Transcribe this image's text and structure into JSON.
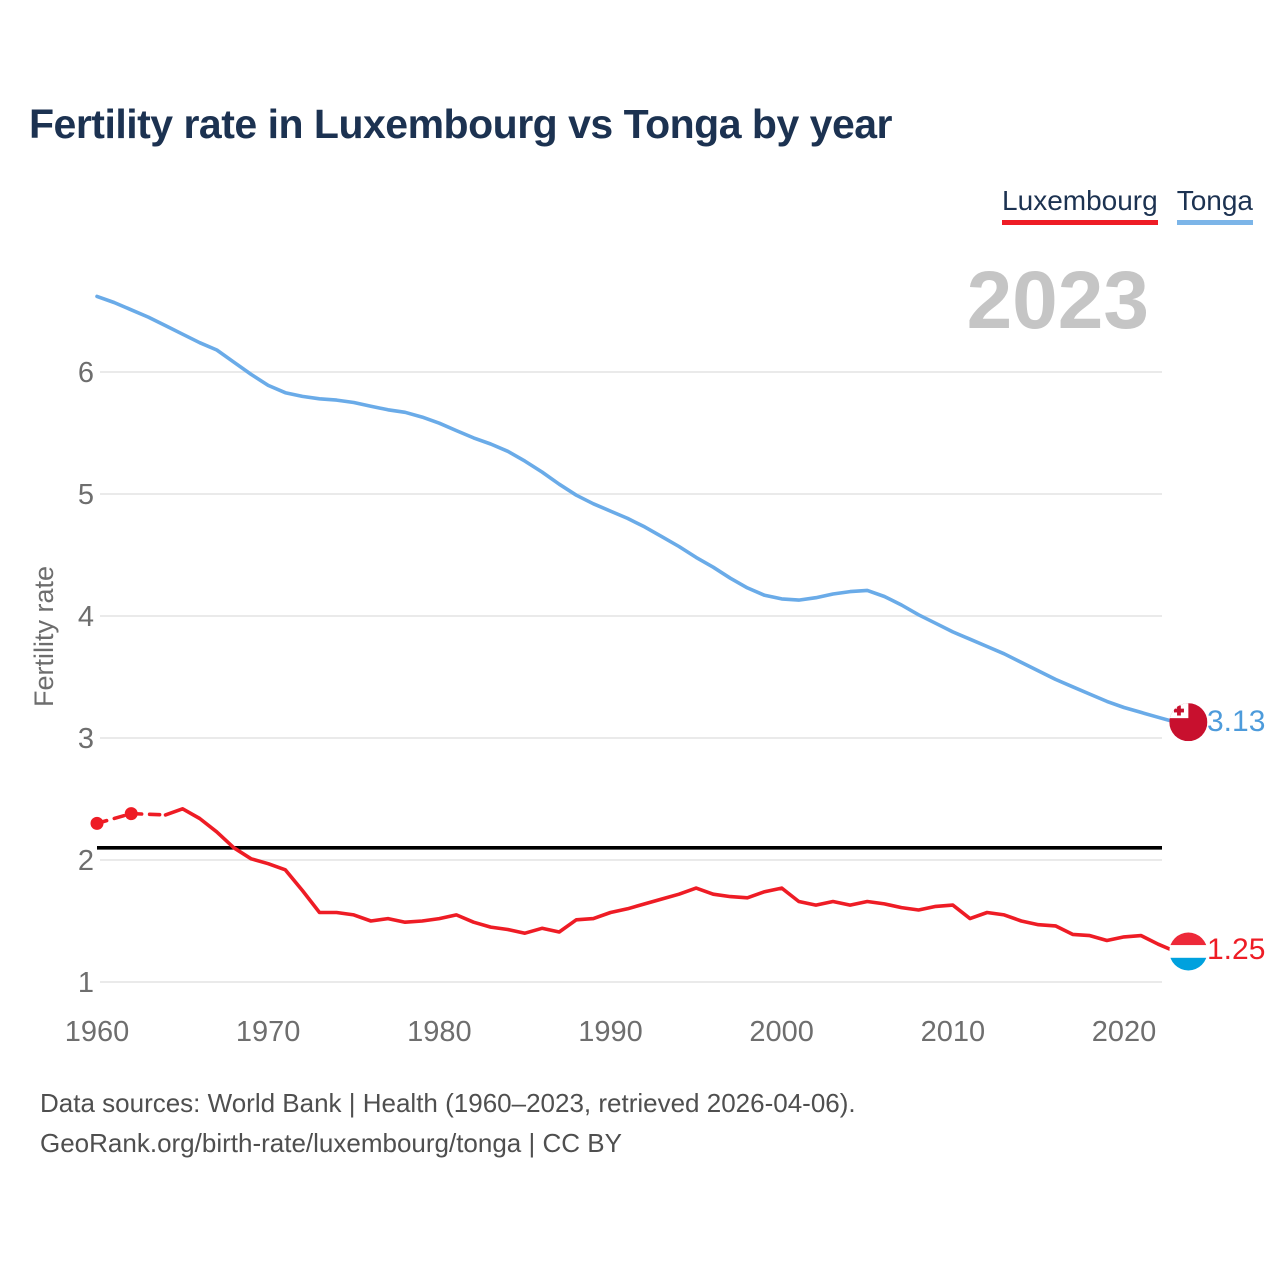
{
  "header": {
    "title": "Fertility rate in Luxembourg vs Tonga by year"
  },
  "legend": {
    "luxembourg": "Luxembourg",
    "tonga": "Tonga"
  },
  "footer": {
    "line1": "Data sources: World Bank | Health (1960–2023, retrieved 2026-04-06).",
    "line2": "GeoRank.org/birth-rate/luxembourg/tonga | CC BY"
  },
  "colors": {
    "title_navy": "#1c3251",
    "tonga_line_blue": "#6aabe8",
    "tonga_value_blue": "#4d9bdb",
    "tonga_underline_blue": "#7cb5e8",
    "luxembourg_red": "#ee1c25",
    "reference_line_black": "#000000",
    "watermark_gray": "#c5c5c5",
    "axis_text_gray": "#6e6e6e",
    "gridline_gray": "#e4e4e4",
    "tonga_flag_red": "#c8102e",
    "lux_flag_red": "#ed2939",
    "lux_flag_blue": "#00a1de"
  },
  "chart_data": {
    "type": "line",
    "title": "Fertility rate in Luxembourg vs Tonga by year",
    "xlabel": "",
    "ylabel": "Fertility rate",
    "watermark": "2023",
    "x_ticks": [
      1960,
      1970,
      1980,
      1990,
      2000,
      2010,
      2020
    ],
    "y_ticks": [
      1,
      2,
      3,
      4,
      5,
      6
    ],
    "xlim": [
      1960,
      2023
    ],
    "ylim": [
      0.8,
      6.9
    ],
    "grid": "horizontal",
    "legend_position": "top-right",
    "reference_line": {
      "value": 2.1,
      "color": "#000000"
    },
    "series": [
      {
        "name": "Tonga",
        "color": "#6aabe8",
        "end_label": "3.13",
        "flag": "tonga",
        "x": [
          1960,
          1961,
          1962,
          1963,
          1964,
          1965,
          1966,
          1967,
          1968,
          1969,
          1970,
          1971,
          1972,
          1973,
          1974,
          1975,
          1976,
          1977,
          1978,
          1979,
          1980,
          1981,
          1982,
          1983,
          1984,
          1985,
          1986,
          1987,
          1988,
          1989,
          1990,
          1991,
          1992,
          1993,
          1994,
          1995,
          1996,
          1997,
          1998,
          1999,
          2000,
          2001,
          2002,
          2003,
          2004,
          2005,
          2006,
          2007,
          2008,
          2009,
          2010,
          2011,
          2012,
          2013,
          2014,
          2015,
          2016,
          2017,
          2018,
          2019,
          2020,
          2021,
          2022,
          2023
        ],
        "values": [
          6.62,
          6.57,
          6.51,
          6.45,
          6.38,
          6.31,
          6.24,
          6.18,
          6.08,
          5.98,
          5.89,
          5.83,
          5.8,
          5.78,
          5.77,
          5.75,
          5.72,
          5.69,
          5.67,
          5.63,
          5.58,
          5.52,
          5.46,
          5.41,
          5.35,
          5.27,
          5.18,
          5.08,
          4.99,
          4.92,
          4.86,
          4.8,
          4.73,
          4.65,
          4.57,
          4.48,
          4.4,
          4.31,
          4.23,
          4.17,
          4.14,
          4.13,
          4.15,
          4.18,
          4.2,
          4.21,
          4.16,
          4.09,
          4.01,
          3.94,
          3.87,
          3.81,
          3.75,
          3.69,
          3.62,
          3.55,
          3.48,
          3.42,
          3.36,
          3.3,
          3.25,
          3.21,
          3.17,
          3.13
        ]
      },
      {
        "name": "Luxembourg",
        "color": "#ee1c25",
        "end_label": "1.25",
        "flag": "luxembourg",
        "dashed_through": 1964,
        "marker_x": [
          1960,
          1962
        ],
        "x": [
          1960,
          1962,
          1964,
          1965,
          1966,
          1967,
          1968,
          1969,
          1970,
          1971,
          1972,
          1973,
          1974,
          1975,
          1976,
          1977,
          1978,
          1979,
          1980,
          1981,
          1982,
          1983,
          1984,
          1985,
          1986,
          1987,
          1988,
          1989,
          1990,
          1991,
          1992,
          1993,
          1994,
          1995,
          1996,
          1997,
          1998,
          1999,
          2000,
          2001,
          2002,
          2003,
          2004,
          2005,
          2006,
          2007,
          2008,
          2009,
          2010,
          2011,
          2012,
          2013,
          2014,
          2015,
          2016,
          2017,
          2018,
          2019,
          2020,
          2021,
          2022,
          2023
        ],
        "values": [
          2.3,
          2.38,
          2.37,
          2.42,
          2.34,
          2.23,
          2.1,
          2.01,
          1.97,
          1.92,
          1.75,
          1.57,
          1.57,
          1.55,
          1.5,
          1.52,
          1.49,
          1.5,
          1.52,
          1.55,
          1.49,
          1.45,
          1.43,
          1.4,
          1.44,
          1.41,
          1.51,
          1.52,
          1.57,
          1.6,
          1.64,
          1.68,
          1.72,
          1.77,
          1.72,
          1.7,
          1.69,
          1.74,
          1.77,
          1.66,
          1.63,
          1.66,
          1.63,
          1.66,
          1.64,
          1.61,
          1.59,
          1.62,
          1.63,
          1.52,
          1.57,
          1.55,
          1.5,
          1.47,
          1.46,
          1.39,
          1.38,
          1.34,
          1.37,
          1.38,
          1.31,
          1.25
        ]
      }
    ]
  }
}
